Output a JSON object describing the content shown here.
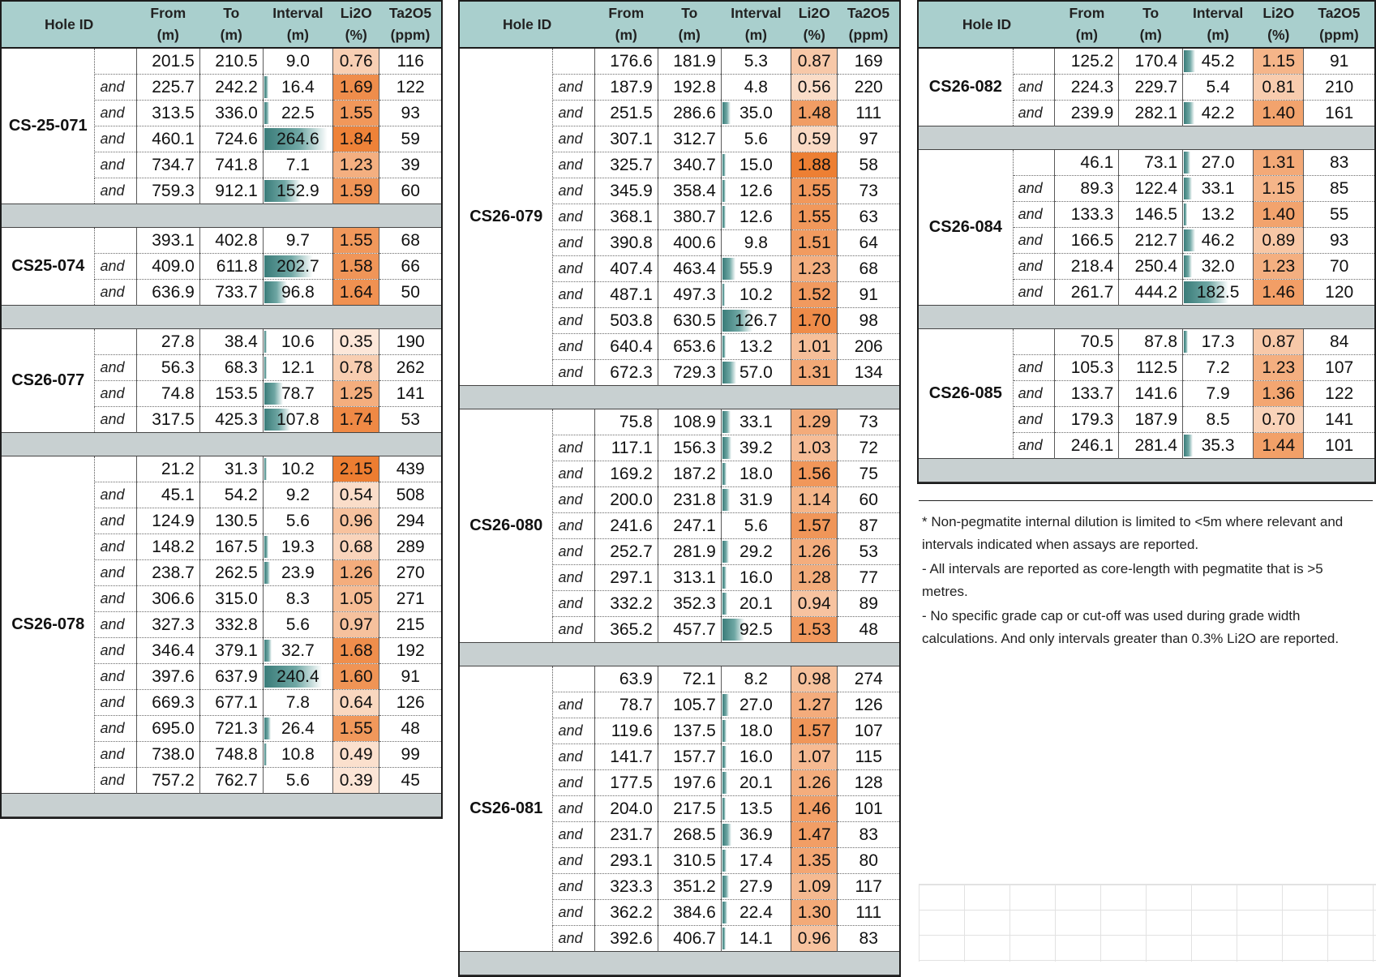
{
  "headers": {
    "hole_id": "Hole ID",
    "from": [
      "From",
      "(m)"
    ],
    "to": [
      "To",
      "(m)"
    ],
    "interval": [
      "Interval",
      "(m)"
    ],
    "li2o": [
      "Li2O",
      "(%)"
    ],
    "ta2o5": [
      "Ta2O5",
      "(ppm)"
    ]
  },
  "colors": {
    "header_bg": "#a9cfcd",
    "separator_bg": "#c8d0d1",
    "bar_color": "#3a7c79",
    "li2o_low": "#fbe5d6",
    "li2o_high": "#ed7d31"
  },
  "panels": [
    {
      "holes": [
        {
          "id": "CS-25-071",
          "rows": [
            [
              "",
              "201.5",
              "210.5",
              "9.0",
              "0.76",
              "116"
            ],
            [
              "and",
              "225.7",
              "242.2",
              "16.4",
              "1.69",
              "122"
            ],
            [
              "and",
              "313.5",
              "336.0",
              "22.5",
              "1.55",
              "93"
            ],
            [
              "and",
              "460.1",
              "724.6",
              "264.6",
              "1.84",
              "59"
            ],
            [
              "and",
              "734.7",
              "741.8",
              "7.1",
              "1.23",
              "39"
            ],
            [
              "and",
              "759.3",
              "912.1",
              "152.9",
              "1.59",
              "60"
            ]
          ]
        },
        {
          "id": "CS25-074",
          "rows": [
            [
              "",
              "393.1",
              "402.8",
              "9.7",
              "1.55",
              "68"
            ],
            [
              "and",
              "409.0",
              "611.8",
              "202.7",
              "1.58",
              "66"
            ],
            [
              "and",
              "636.9",
              "733.7",
              "96.8",
              "1.64",
              "50"
            ]
          ]
        },
        {
          "id": "CS26-077",
          "rows": [
            [
              "",
              "27.8",
              "38.4",
              "10.6",
              "0.35",
              "190"
            ],
            [
              "and",
              "56.3",
              "68.3",
              "12.1",
              "0.78",
              "262"
            ],
            [
              "and",
              "74.8",
              "153.5",
              "78.7",
              "1.25",
              "141"
            ],
            [
              "and",
              "317.5",
              "425.3",
              "107.8",
              "1.74",
              "53"
            ]
          ]
        },
        {
          "id": "CS26-078",
          "rows": [
            [
              "",
              "21.2",
              "31.3",
              "10.2",
              "2.15",
              "439"
            ],
            [
              "and",
              "45.1",
              "54.2",
              "9.2",
              "0.54",
              "508"
            ],
            [
              "and",
              "124.9",
              "130.5",
              "5.6",
              "0.96",
              "294"
            ],
            [
              "and",
              "148.2",
              "167.5",
              "19.3",
              "0.68",
              "289"
            ],
            [
              "and",
              "238.7",
              "262.5",
              "23.9",
              "1.26",
              "270"
            ],
            [
              "and",
              "306.6",
              "315.0",
              "8.3",
              "1.05",
              "271"
            ],
            [
              "and",
              "327.3",
              "332.8",
              "5.6",
              "0.97",
              "215"
            ],
            [
              "and",
              "346.4",
              "379.1",
              "32.7",
              "1.68",
              "192"
            ],
            [
              "and",
              "397.6",
              "637.9",
              "240.4",
              "1.60",
              "91"
            ],
            [
              "and",
              "669.3",
              "677.1",
              "7.8",
              "0.64",
              "126"
            ],
            [
              "and",
              "695.0",
              "721.3",
              "26.4",
              "1.55",
              "48"
            ],
            [
              "and",
              "738.0",
              "748.8",
              "10.8",
              "0.49",
              "99"
            ],
            [
              "and",
              "757.2",
              "762.7",
              "5.6",
              "0.39",
              "45"
            ]
          ]
        }
      ]
    },
    {
      "holes": [
        {
          "id": "CS26-079",
          "rows": [
            [
              "",
              "176.6",
              "181.9",
              "5.3",
              "0.87",
              "169"
            ],
            [
              "and",
              "187.9",
              "192.8",
              "4.8",
              "0.56",
              "220"
            ],
            [
              "and",
              "251.5",
              "286.6",
              "35.0",
              "1.48",
              "111"
            ],
            [
              "and",
              "307.1",
              "312.7",
              "5.6",
              "0.59",
              "97"
            ],
            [
              "and",
              "325.7",
              "340.7",
              "15.0",
              "1.88",
              "58"
            ],
            [
              "and",
              "345.9",
              "358.4",
              "12.6",
              "1.55",
              "73"
            ],
            [
              "and",
              "368.1",
              "380.7",
              "12.6",
              "1.55",
              "63"
            ],
            [
              "and",
              "390.8",
              "400.6",
              "9.8",
              "1.51",
              "64"
            ],
            [
              "and",
              "407.4",
              "463.4",
              "55.9",
              "1.23",
              "68"
            ],
            [
              "and",
              "487.1",
              "497.3",
              "10.2",
              "1.52",
              "91"
            ],
            [
              "and",
              "503.8",
              "630.5",
              "126.7",
              "1.70",
              "98"
            ],
            [
              "and",
              "640.4",
              "653.6",
              "13.2",
              "1.01",
              "206"
            ],
            [
              "and",
              "672.3",
              "729.3",
              "57.0",
              "1.31",
              "134"
            ]
          ]
        },
        {
          "id": "CS26-080",
          "rows": [
            [
              "",
              "75.8",
              "108.9",
              "33.1",
              "1.29",
              "73"
            ],
            [
              "and",
              "117.1",
              "156.3",
              "39.2",
              "1.03",
              "72"
            ],
            [
              "and",
              "169.2",
              "187.2",
              "18.0",
              "1.56",
              "75"
            ],
            [
              "and",
              "200.0",
              "231.8",
              "31.9",
              "1.14",
              "60"
            ],
            [
              "and",
              "241.6",
              "247.1",
              "5.6",
              "1.57",
              "87"
            ],
            [
              "and",
              "252.7",
              "281.9",
              "29.2",
              "1.26",
              "53"
            ],
            [
              "and",
              "297.1",
              "313.1",
              "16.0",
              "1.28",
              "77"
            ],
            [
              "and",
              "332.2",
              "352.3",
              "20.1",
              "0.94",
              "89"
            ],
            [
              "and",
              "365.2",
              "457.7",
              "92.5",
              "1.53",
              "48"
            ]
          ]
        },
        {
          "id": "CS26-081",
          "rows": [
            [
              "",
              "63.9",
              "72.1",
              "8.2",
              "0.98",
              "274"
            ],
            [
              "and",
              "78.7",
              "105.7",
              "27.0",
              "1.27",
              "126"
            ],
            [
              "and",
              "119.6",
              "137.5",
              "18.0",
              "1.57",
              "107"
            ],
            [
              "and",
              "141.7",
              "157.7",
              "16.0",
              "1.07",
              "115"
            ],
            [
              "and",
              "177.5",
              "197.6",
              "20.1",
              "1.26",
              "128"
            ],
            [
              "and",
              "204.0",
              "217.5",
              "13.5",
              "1.46",
              "101"
            ],
            [
              "and",
              "231.7",
              "268.5",
              "36.9",
              "1.47",
              "83"
            ],
            [
              "and",
              "293.1",
              "310.5",
              "17.4",
              "1.35",
              "80"
            ],
            [
              "and",
              "323.3",
              "351.2",
              "27.9",
              "1.09",
              "117"
            ],
            [
              "and",
              "362.2",
              "384.6",
              "22.4",
              "1.30",
              "111"
            ],
            [
              "and",
              "392.6",
              "406.7",
              "14.1",
              "0.96",
              "83"
            ]
          ]
        }
      ]
    },
    {
      "holes": [
        {
          "id": "CS26-082",
          "rows": [
            [
              "",
              "125.2",
              "170.4",
              "45.2",
              "1.15",
              "91"
            ],
            [
              "and",
              "224.3",
              "229.7",
              "5.4",
              "0.81",
              "210"
            ],
            [
              "and",
              "239.9",
              "282.1",
              "42.2",
              "1.40",
              "161"
            ]
          ]
        },
        {
          "id": "CS26-084",
          "rows": [
            [
              "",
              "46.1",
              "73.1",
              "27.0",
              "1.31",
              "83"
            ],
            [
              "and",
              "89.3",
              "122.4",
              "33.1",
              "1.15",
              "85"
            ],
            [
              "and",
              "133.3",
              "146.5",
              "13.2",
              "1.40",
              "55"
            ],
            [
              "and",
              "166.5",
              "212.7",
              "46.2",
              "0.89",
              "93"
            ],
            [
              "and",
              "218.4",
              "250.4",
              "32.0",
              "1.23",
              "70"
            ],
            [
              "and",
              "261.7",
              "444.2",
              "182.5",
              "1.46",
              "120"
            ]
          ]
        },
        {
          "id": "CS26-085",
          "rows": [
            [
              "",
              "70.5",
              "87.8",
              "17.3",
              "0.87",
              "84"
            ],
            [
              "and",
              "105.3",
              "112.5",
              "7.2",
              "1.23",
              "107"
            ],
            [
              "and",
              "133.7",
              "141.6",
              "7.9",
              "1.36",
              "122"
            ],
            [
              "and",
              "179.3",
              "187.9",
              "8.5",
              "0.70",
              "141"
            ],
            [
              "and",
              "246.1",
              "281.4",
              "35.3",
              "1.44",
              "101"
            ]
          ]
        }
      ]
    }
  ],
  "notes": [
    "* Non-pegmatite internal dilution is limited to <5m where relevant and intervals indicated when assays are reported.",
    "- All intervals are reported as core-length with pegmatite that is >5 metres.",
    "- No specific grade cap or cut-off was used during grade width calculations. And only intervals greater than 0.3% Li2O are reported."
  ]
}
